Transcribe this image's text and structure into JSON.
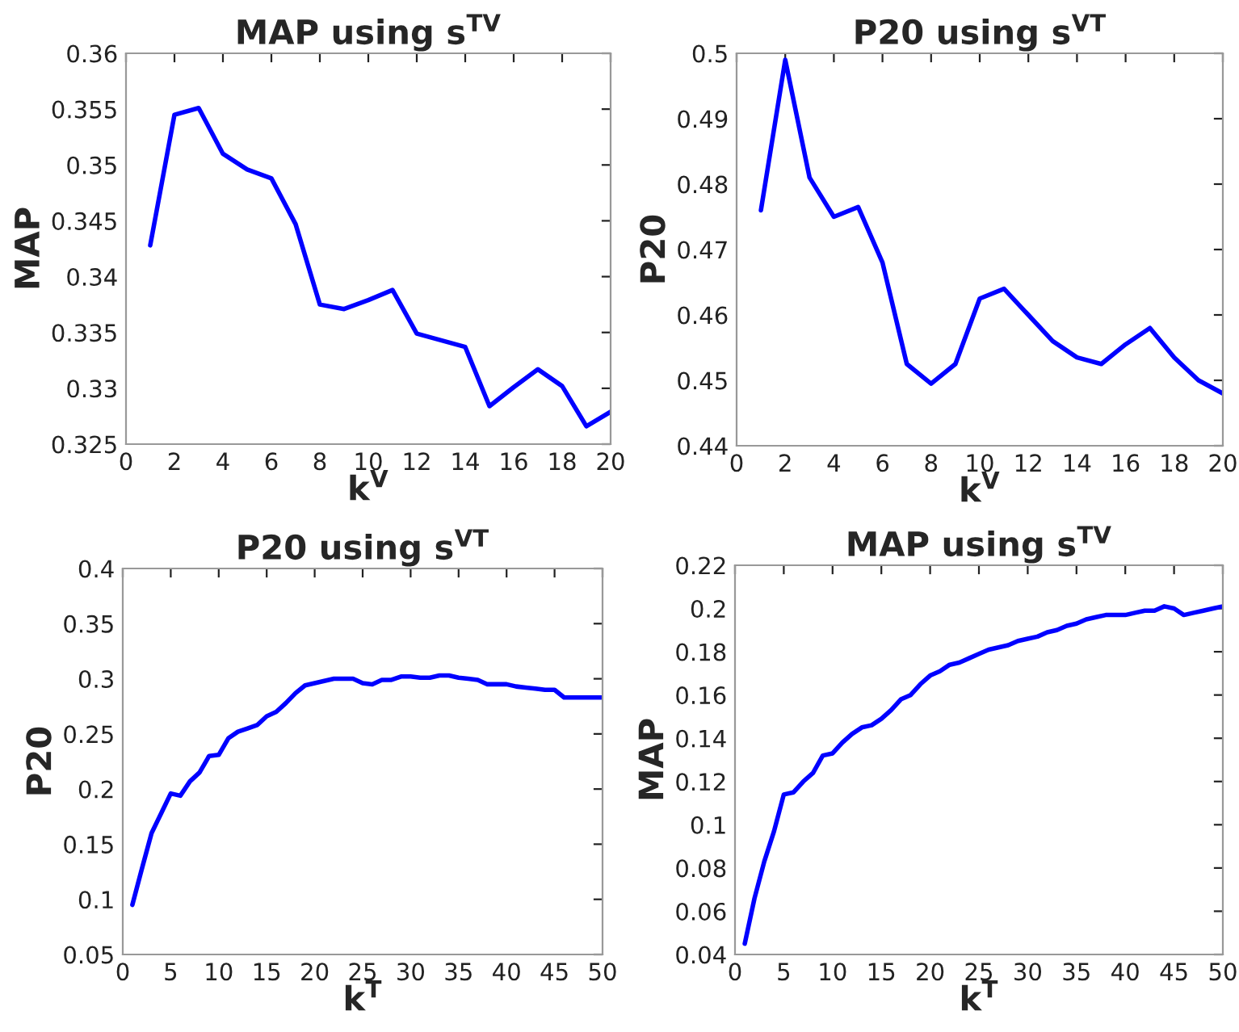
{
  "chart_data": [
    {
      "type": "line",
      "title": "MAP using s$^{TV}$",
      "xlabel": "k$^{V}$",
      "ylabel": "MAP",
      "x": [
        1,
        2,
        3,
        4,
        5,
        6,
        7,
        8,
        9,
        10,
        11,
        12,
        13,
        14,
        15,
        16,
        17,
        18,
        19,
        20
      ],
      "series": [
        {
          "color": "#0000ff",
          "values": [
            0.3428,
            0.3545,
            0.3551,
            0.351,
            0.3496,
            0.3488,
            0.3447,
            0.3375,
            0.3371,
            0.3379,
            0.3388,
            0.3349,
            0.3343,
            0.3337,
            0.3284,
            0.3301,
            0.3317,
            0.3302,
            0.3266,
            0.3279
          ]
        }
      ],
      "xlim": [
        0,
        20
      ],
      "xticks": [
        0,
        2,
        4,
        6,
        8,
        10,
        12,
        14,
        16,
        18,
        20
      ],
      "ylim": [
        0.325,
        0.36
      ],
      "yticks": [
        0.325,
        0.33,
        0.335,
        0.34,
        0.345,
        0.35,
        0.355,
        0.36
      ],
      "grid": false
    },
    {
      "type": "line",
      "title": "P20 using s$^{VT}$",
      "xlabel": "k$^{V}$",
      "ylabel": "P20",
      "x": [
        1,
        2,
        3,
        4,
        5,
        6,
        7,
        8,
        9,
        10,
        11,
        12,
        13,
        14,
        15,
        16,
        17,
        18,
        19,
        20
      ],
      "series": [
        {
          "color": "#0000ff",
          "values": [
            0.476,
            0.499,
            0.481,
            0.475,
            0.4765,
            0.468,
            0.4525,
            0.4495,
            0.4525,
            0.4625,
            0.464,
            0.46,
            0.456,
            0.4535,
            0.4525,
            0.4555,
            0.458,
            0.4535,
            0.45,
            0.448
          ]
        }
      ],
      "xlim": [
        0,
        20
      ],
      "xticks": [
        0,
        2,
        4,
        6,
        8,
        10,
        12,
        14,
        16,
        18,
        20
      ],
      "ylim": [
        0.44,
        0.5
      ],
      "yticks": [
        0.44,
        0.45,
        0.46,
        0.47,
        0.48,
        0.49,
        0.5
      ],
      "grid": false
    },
    {
      "type": "line",
      "title": "P20 using s$^{VT}$",
      "xlabel": "k$^{T}$",
      "ylabel": "P20",
      "x": [
        1,
        2,
        3,
        4,
        5,
        6,
        7,
        8,
        9,
        10,
        11,
        12,
        13,
        14,
        15,
        16,
        17,
        18,
        19,
        20,
        21,
        22,
        23,
        24,
        25,
        26,
        27,
        28,
        29,
        30,
        31,
        32,
        33,
        34,
        35,
        36,
        37,
        38,
        39,
        40,
        41,
        42,
        43,
        44,
        45,
        46,
        47,
        48,
        49,
        50
      ],
      "series": [
        {
          "color": "#0000ff",
          "values": [
            0.095,
            0.128,
            0.16,
            0.178,
            0.196,
            0.194,
            0.207,
            0.215,
            0.23,
            0.231,
            0.246,
            0.252,
            0.255,
            0.258,
            0.266,
            0.27,
            0.278,
            0.287,
            0.294,
            0.296,
            0.298,
            0.3,
            0.3,
            0.3,
            0.296,
            0.295,
            0.299,
            0.299,
            0.302,
            0.302,
            0.301,
            0.301,
            0.303,
            0.303,
            0.301,
            0.3,
            0.299,
            0.295,
            0.295,
            0.295,
            0.293,
            0.292,
            0.291,
            0.29,
            0.29,
            0.283,
            0.283,
            0.283,
            0.283,
            0.283
          ]
        }
      ],
      "xlim": [
        0,
        50
      ],
      "xticks": [
        0,
        5,
        10,
        15,
        20,
        25,
        30,
        35,
        40,
        45,
        50
      ],
      "ylim": [
        0.05,
        0.4
      ],
      "yticks": [
        0.05,
        0.1,
        0.15,
        0.2,
        0.25,
        0.3,
        0.35,
        0.4
      ],
      "grid": false
    },
    {
      "type": "line",
      "title": "MAP using s$^{TV}$",
      "xlabel": "k$^{T}$",
      "ylabel": "MAP",
      "x": [
        1,
        2,
        3,
        4,
        5,
        6,
        7,
        8,
        9,
        10,
        11,
        12,
        13,
        14,
        15,
        16,
        17,
        18,
        19,
        20,
        21,
        22,
        23,
        24,
        25,
        26,
        27,
        28,
        29,
        30,
        31,
        32,
        33,
        34,
        35,
        36,
        37,
        38,
        39,
        40,
        41,
        42,
        43,
        44,
        45,
        46,
        47,
        48,
        49,
        50
      ],
      "series": [
        {
          "color": "#0000ff",
          "values": [
            0.045,
            0.066,
            0.083,
            0.097,
            0.114,
            0.115,
            0.12,
            0.124,
            0.132,
            0.133,
            0.138,
            0.142,
            0.145,
            0.146,
            0.149,
            0.153,
            0.158,
            0.16,
            0.165,
            0.169,
            0.171,
            0.174,
            0.175,
            0.177,
            0.179,
            0.181,
            0.182,
            0.183,
            0.185,
            0.186,
            0.187,
            0.189,
            0.19,
            0.192,
            0.193,
            0.195,
            0.196,
            0.197,
            0.197,
            0.197,
            0.198,
            0.199,
            0.199,
            0.201,
            0.2,
            0.197,
            0.198,
            0.199,
            0.2,
            0.201
          ]
        }
      ],
      "xlim": [
        0,
        50
      ],
      "xticks": [
        0,
        5,
        10,
        15,
        20,
        25,
        30,
        35,
        40,
        45,
        50
      ],
      "ylim": [
        0.04,
        0.22
      ],
      "yticks": [
        0.04,
        0.06,
        0.08,
        0.1,
        0.12,
        0.14,
        0.16,
        0.18,
        0.2,
        0.22
      ],
      "grid": false
    }
  ]
}
